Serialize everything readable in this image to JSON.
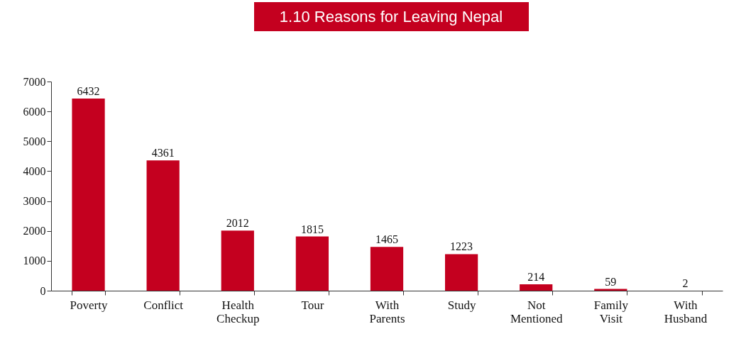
{
  "chart_data": {
    "type": "bar",
    "title": "1.10  Reasons for Leaving Nepal",
    "categories": [
      "Poverty",
      "Conflict",
      "Health Checkup",
      "Tour",
      "With Parents",
      "Study",
      "Not Mentioned",
      "Family Visit",
      "With Husband"
    ],
    "values": [
      6432,
      4361,
      2012,
      1815,
      1465,
      1223,
      214,
      59,
      2
    ],
    "color": "#c4001f",
    "ylim": [
      0,
      7000
    ],
    "yticks": [
      0,
      1000,
      2000,
      3000,
      4000,
      5000,
      6000,
      7000
    ],
    "data_labels": true,
    "grid": false
  }
}
